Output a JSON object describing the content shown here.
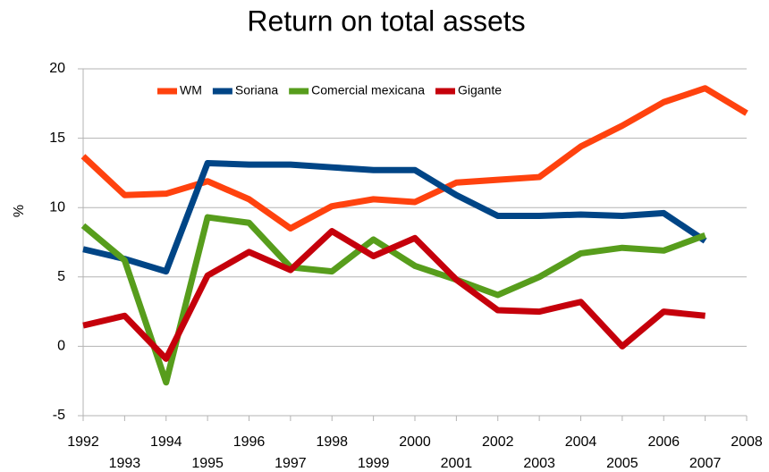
{
  "chart_data": {
    "type": "line",
    "title": "Return on total assets",
    "y_label": "%",
    "x": [
      1992,
      1993,
      1994,
      1995,
      1996,
      1997,
      1998,
      1999,
      2000,
      2001,
      2002,
      2003,
      2004,
      2005,
      2006,
      2007,
      2008
    ],
    "xlim": [
      1992,
      2008
    ],
    "xticks": [
      1992,
      1993,
      1994,
      1995,
      1996,
      1997,
      1998,
      1999,
      2000,
      2001,
      2002,
      2003,
      2004,
      2005,
      2006,
      2007,
      2008
    ],
    "ylim": [
      -5,
      20
    ],
    "yticks": [
      -5,
      0,
      5,
      10,
      15,
      20
    ],
    "grid": true,
    "legend": "top",
    "series": [
      {
        "name": "WM",
        "color": "#ff420e",
        "values": [
          13.7,
          10.9,
          11.0,
          11.9,
          10.6,
          8.5,
          10.1,
          10.6,
          10.4,
          11.8,
          12.0,
          12.2,
          14.4,
          15.9,
          17.6,
          18.6,
          16.8
        ]
      },
      {
        "name": "Soriana",
        "color": "#004586",
        "values": [
          7.0,
          6.3,
          5.4,
          13.2,
          13.1,
          13.1,
          12.9,
          12.7,
          12.7,
          10.9,
          9.4,
          9.4,
          9.5,
          9.4,
          9.6,
          7.6,
          null
        ]
      },
      {
        "name": "Comercial mexicana",
        "color": "#579d1c",
        "values": [
          8.7,
          6.2,
          -2.6,
          9.3,
          8.9,
          5.7,
          5.4,
          7.7,
          5.8,
          4.8,
          3.7,
          5.0,
          6.7,
          7.1,
          6.9,
          8.0,
          null
        ]
      },
      {
        "name": "Gigante",
        "color": "#c5000b",
        "values": [
          1.5,
          2.2,
          -0.9,
          5.1,
          6.8,
          5.5,
          8.3,
          6.5,
          7.8,
          4.8,
          2.6,
          2.5,
          3.2,
          0.0,
          2.5,
          2.2,
          null
        ]
      }
    ]
  }
}
